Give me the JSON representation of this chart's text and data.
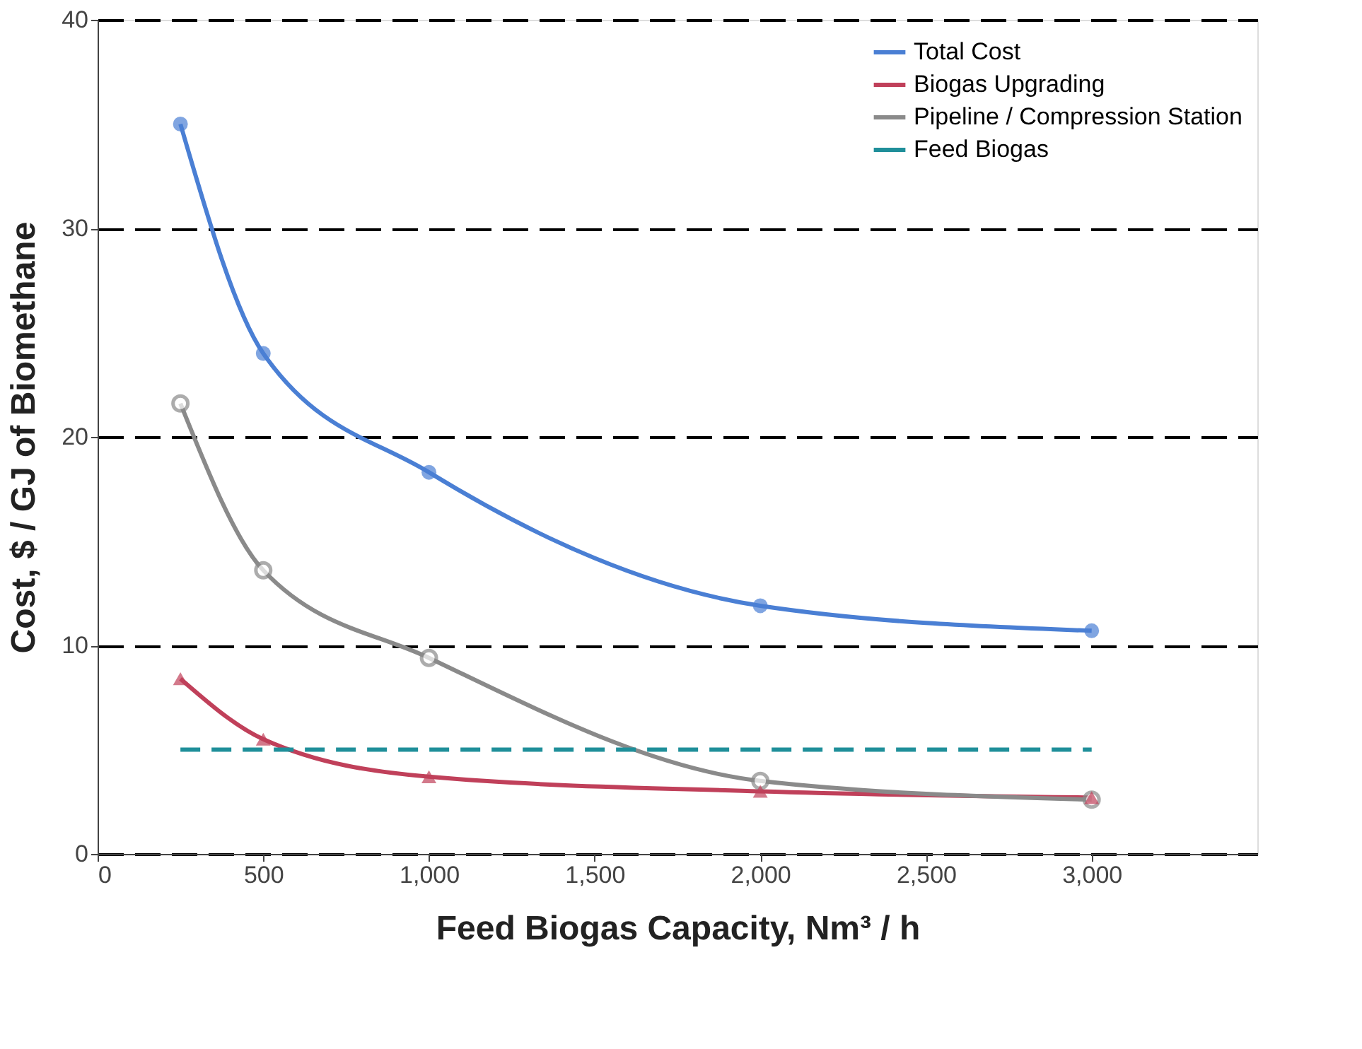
{
  "chart_data": {
    "type": "line",
    "xlabel": "Feed Biogas Capacity, Nm³ / h",
    "ylabel": "Cost, $ / GJ of Biomethane",
    "xlim": [
      0,
      3500
    ],
    "xticks": [
      {
        "value": 0,
        "label": "0"
      },
      {
        "value": 500,
        "label": "500"
      },
      {
        "value": 1000,
        "label": "1,000"
      },
      {
        "value": 1500,
        "label": "1,500"
      },
      {
        "value": 2000,
        "label": "2,000"
      },
      {
        "value": 2500,
        "label": "2,500"
      },
      {
        "value": 3000,
        "label": "3,000"
      }
    ],
    "ylim": [
      0,
      40
    ],
    "yticks": [
      0,
      10,
      20,
      30,
      40
    ],
    "grid": "y",
    "legend": "top right",
    "x": [
      250,
      500,
      1000,
      2000,
      3000
    ],
    "series": [
      {
        "name": "Total Cost",
        "color": "#4a7fd4",
        "marker": "circle",
        "line_style": "solid",
        "values": [
          35,
          24,
          18.3,
          11.9,
          10.7
        ]
      },
      {
        "name": "Biogas Upgrading",
        "color": "#c0405a",
        "marker": "triangle",
        "line_style": "solid",
        "values": [
          8.4,
          5.5,
          3.7,
          3.0,
          2.7
        ]
      },
      {
        "name": "Pipeline / Compression Station",
        "color": "#8a8a8a",
        "marker": "circle",
        "line_style": "solid",
        "values": [
          21.6,
          13.6,
          9.4,
          3.5,
          2.6
        ]
      },
      {
        "name": "Feed Biogas",
        "color": "#1f8f9a",
        "marker": "none",
        "line_style": "dashed",
        "x": [
          250,
          3000
        ],
        "values": [
          5,
          5
        ]
      }
    ]
  }
}
